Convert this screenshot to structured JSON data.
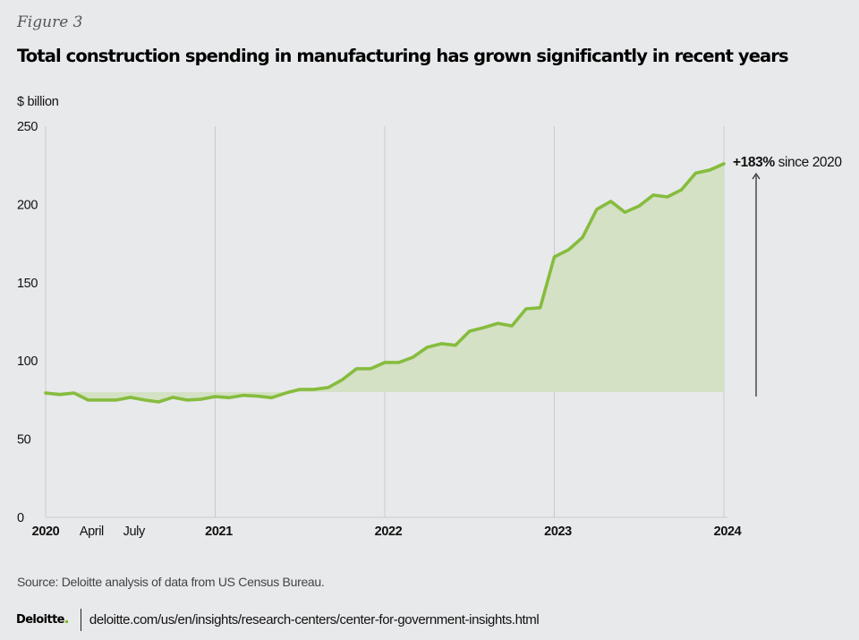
{
  "figure_label": "Figure 3",
  "title": "Total construction spending in manufacturing has grown significantly in recent years",
  "source": "Source: Deloitte analysis of data from US Census Bureau.",
  "footer": {
    "logo": "Deloitte",
    "url": "deloitte.com/us/en/insights/research-centers/center-for-government-insights.html"
  },
  "colors": {
    "background": "#e8e9eb",
    "line": "#86bc3e",
    "fill": "#d4e1c4",
    "grid": "#c9cacc",
    "arrow": "#555555"
  },
  "chart_data": {
    "type": "area",
    "title": "Total construction spending in manufacturing has grown significantly in recent years",
    "ylabel": "$ billion",
    "xlabel": "",
    "ylim": [
      0,
      250
    ],
    "yticks": [
      0,
      50,
      100,
      150,
      200,
      250
    ],
    "xlim": [
      0,
      48
    ],
    "xticks": [
      {
        "pos": 0,
        "label": "2020",
        "major": true
      },
      {
        "pos": 3,
        "label": "April",
        "major": false
      },
      {
        "pos": 6,
        "label": "July",
        "major": false
      },
      {
        "pos": 12,
        "label": "2021",
        "major": true
      },
      {
        "pos": 24,
        "label": "2022",
        "major": true
      },
      {
        "pos": 36,
        "label": "2023",
        "major": true
      },
      {
        "pos": 48,
        "label": "2024",
        "major": true
      }
    ],
    "gridlines_x": [
      12,
      24,
      36,
      48
    ],
    "fill_reference": 80,
    "series": [
      {
        "name": "Total construction spending in manufacturing",
        "x": [
          0,
          1,
          2,
          3,
          4,
          5,
          6,
          7,
          8,
          9,
          10,
          11,
          12,
          13,
          14,
          15,
          16,
          17,
          18,
          19,
          20,
          21,
          22,
          23,
          24,
          25,
          26,
          27,
          28,
          29,
          30,
          31,
          32,
          33,
          34,
          35,
          36,
          37,
          38,
          39,
          40,
          41,
          42,
          43,
          44,
          45,
          46,
          47,
          48
        ],
        "values": [
          79.5,
          78.5,
          79.5,
          75,
          75,
          75,
          76.7,
          75,
          73.8,
          76.7,
          75,
          75.5,
          77.2,
          76.5,
          78,
          77.5,
          76.5,
          79.5,
          81.8,
          81.8,
          83,
          88,
          95,
          95,
          99,
          99,
          102.4,
          108.7,
          111,
          110,
          119,
          121.3,
          124,
          122.4,
          133.3,
          134,
          166.5,
          171,
          179,
          196.8,
          202,
          195,
          199,
          206,
          204.8,
          209.4,
          220,
          222,
          226
        ]
      }
    ],
    "annotation": {
      "bold": "+183%",
      "text": " since 2020"
    },
    "legend": "none"
  }
}
